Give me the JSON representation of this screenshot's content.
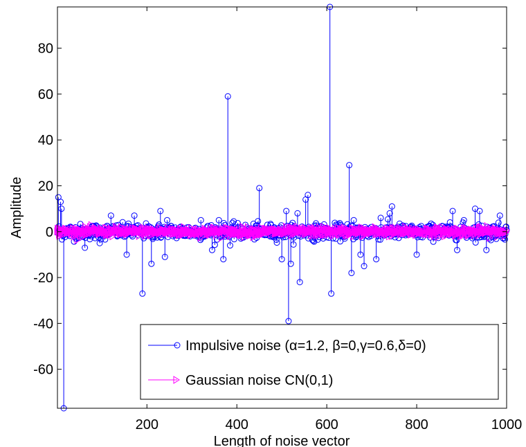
{
  "chart_data": {
    "type": "stem",
    "xlabel": "Length of noise vector",
    "ylabel": "Amplitude",
    "xlim": [
      1,
      1000
    ],
    "ylim": [
      -77,
      98
    ],
    "xticks": [
      200,
      400,
      600,
      800,
      1000
    ],
    "yticks": [
      -60,
      -40,
      -20,
      0,
      20,
      40,
      60,
      80
    ],
    "xtick_labels": [
      "200",
      "400",
      "600",
      "800",
      "1000"
    ],
    "ytick_labels": [
      "-60",
      "-40",
      "-20",
      "0",
      "20",
      "40",
      "60",
      "80"
    ],
    "grid": false,
    "legend_position": "bottom-right",
    "series": [
      {
        "name": "Impulsive noise (α=1.2, β=0,γ=0.6,δ=0)",
        "color": "#0000ff",
        "marker": "circle",
        "noise_amplitude": 3,
        "length": 1000,
        "spikes": [
          [
            3,
            15
          ],
          [
            8,
            13
          ],
          [
            10,
            10
          ],
          [
            15,
            -77
          ],
          [
            62,
            -7
          ],
          [
            95,
            -5
          ],
          [
            120,
            7
          ],
          [
            155,
            -10
          ],
          [
            172,
            7
          ],
          [
            190,
            -27
          ],
          [
            210,
            -14
          ],
          [
            230,
            9
          ],
          [
            240,
            -11
          ],
          [
            245,
            5
          ],
          [
            320,
            5
          ],
          [
            345,
            -8
          ],
          [
            360,
            5
          ],
          [
            370,
            -12
          ],
          [
            380,
            59
          ],
          [
            385,
            -6
          ],
          [
            450,
            19
          ],
          [
            468,
            3
          ],
          [
            500,
            -12
          ],
          [
            510,
            9
          ],
          [
            515,
            -39
          ],
          [
            520,
            -14
          ],
          [
            535,
            8
          ],
          [
            540,
            -22
          ],
          [
            553,
            14
          ],
          [
            558,
            16
          ],
          [
            570,
            -4
          ],
          [
            607,
            98
          ],
          [
            610,
            -27
          ],
          [
            650,
            29
          ],
          [
            655,
            -18
          ],
          [
            660,
            5
          ],
          [
            675,
            -10
          ],
          [
            683,
            -15
          ],
          [
            710,
            -12
          ],
          [
            720,
            6
          ],
          [
            740,
            8
          ],
          [
            745,
            11
          ],
          [
            800,
            -10
          ],
          [
            880,
            9
          ],
          [
            890,
            -8
          ],
          [
            905,
            5
          ],
          [
            930,
            10
          ],
          [
            940,
            9
          ],
          [
            955,
            -8
          ],
          [
            985,
            7
          ],
          [
            998,
            2
          ]
        ]
      },
      {
        "name": "Gaussian noise CN(0,1)",
        "color": "#ff00ff",
        "marker": "triangle-right",
        "std": 1,
        "length": 1000
      }
    ]
  }
}
